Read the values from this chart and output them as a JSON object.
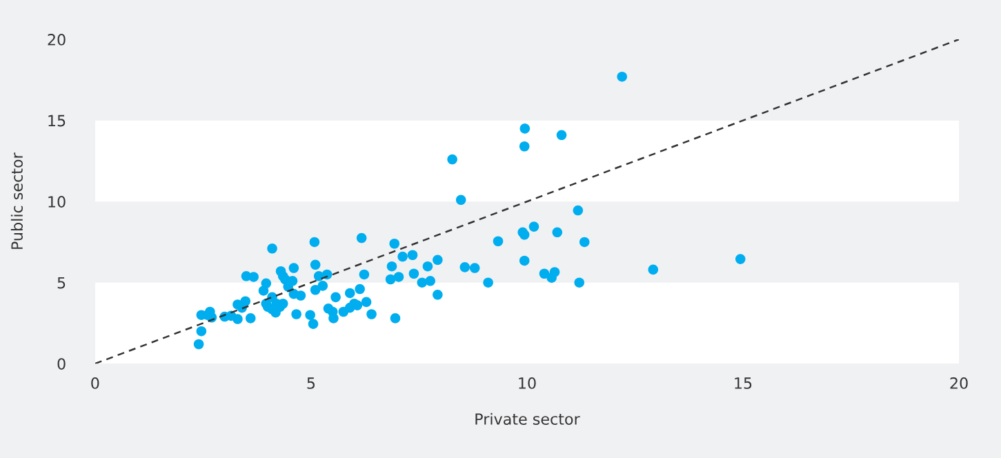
{
  "chart_data": {
    "type": "scatter",
    "xlabel": "Private sector",
    "ylabel": "Public sector",
    "xlim": [
      0,
      20
    ],
    "ylim": [
      0,
      20
    ],
    "xticks": [
      0,
      5,
      10,
      15,
      20
    ],
    "yticks": [
      0,
      5,
      10,
      15,
      20
    ],
    "grid": false,
    "legend": false,
    "marker": "circle",
    "bands": [
      {
        "axis": "y",
        "from": 0,
        "to": 5,
        "color": "#ffffff"
      },
      {
        "axis": "y",
        "from": 10,
        "to": 15,
        "color": "#ffffff"
      }
    ],
    "series": [
      {
        "color": "#00aeef",
        "x": [
          2.4,
          2.46,
          2.46,
          2.6,
          2.66,
          2.7,
          3.0,
          3.15,
          3.3,
          3.3,
          3.4,
          3.48,
          3.5,
          3.67,
          3.6,
          3.9,
          3.96,
          3.96,
          4.0,
          4.1,
          4.1,
          4.1,
          4.18,
          4.2,
          4.28,
          4.3,
          4.35,
          4.35,
          4.4,
          4.47,
          4.57,
          4.6,
          4.6,
          4.66,
          4.76,
          4.98,
          5.05,
          5.08,
          5.1,
          5.1,
          5.18,
          5.27,
          5.37,
          5.4,
          5.5,
          5.52,
          5.57,
          5.75,
          5.9,
          5.9,
          6.0,
          6.07,
          6.13,
          6.17,
          6.23,
          6.28,
          6.4,
          6.84,
          6.87,
          6.93,
          6.95,
          7.03,
          7.12,
          7.35,
          7.38,
          7.57,
          7.7,
          7.76,
          7.93,
          7.93,
          8.27,
          8.47,
          8.56,
          8.79,
          9.1,
          9.33,
          9.9,
          9.94,
          9.94,
          9.94,
          9.95,
          10.16,
          10.4,
          10.57,
          10.64,
          10.7,
          10.8,
          11.18,
          11.21,
          11.33,
          12.92,
          12.2,
          14.94
        ],
        "values": [
          1.2,
          2.0,
          3.0,
          3.0,
          3.2,
          2.85,
          2.9,
          2.95,
          2.75,
          3.65,
          3.45,
          3.85,
          5.4,
          5.35,
          2.8,
          4.5,
          4.95,
          3.7,
          3.5,
          7.1,
          4.1,
          3.35,
          3.15,
          3.7,
          3.5,
          5.7,
          5.4,
          3.7,
          5.2,
          4.75,
          5.1,
          5.9,
          4.3,
          3.05,
          4.2,
          3.0,
          2.45,
          7.5,
          6.1,
          4.55,
          5.4,
          4.8,
          5.5,
          3.4,
          3.2,
          2.8,
          4.1,
          3.2,
          4.35,
          3.45,
          3.7,
          3.6,
          4.6,
          7.75,
          5.5,
          3.8,
          3.05,
          5.2,
          6.0,
          7.4,
          2.8,
          5.35,
          6.6,
          6.7,
          5.55,
          5.0,
          6.0,
          5.1,
          6.4,
          4.25,
          12.6,
          10.1,
          5.95,
          5.9,
          5.0,
          7.55,
          8.1,
          7.95,
          6.35,
          13.4,
          14.5,
          8.45,
          5.55,
          5.3,
          5.65,
          8.1,
          14.1,
          9.45,
          5.0,
          7.5,
          5.8,
          17.7,
          6.45
        ]
      },
      {
        "type": "line",
        "color": "#333333",
        "line_style": "dashed",
        "marker": "none",
        "x": [
          0,
          20
        ],
        "values": [
          0,
          20
        ]
      }
    ]
  }
}
